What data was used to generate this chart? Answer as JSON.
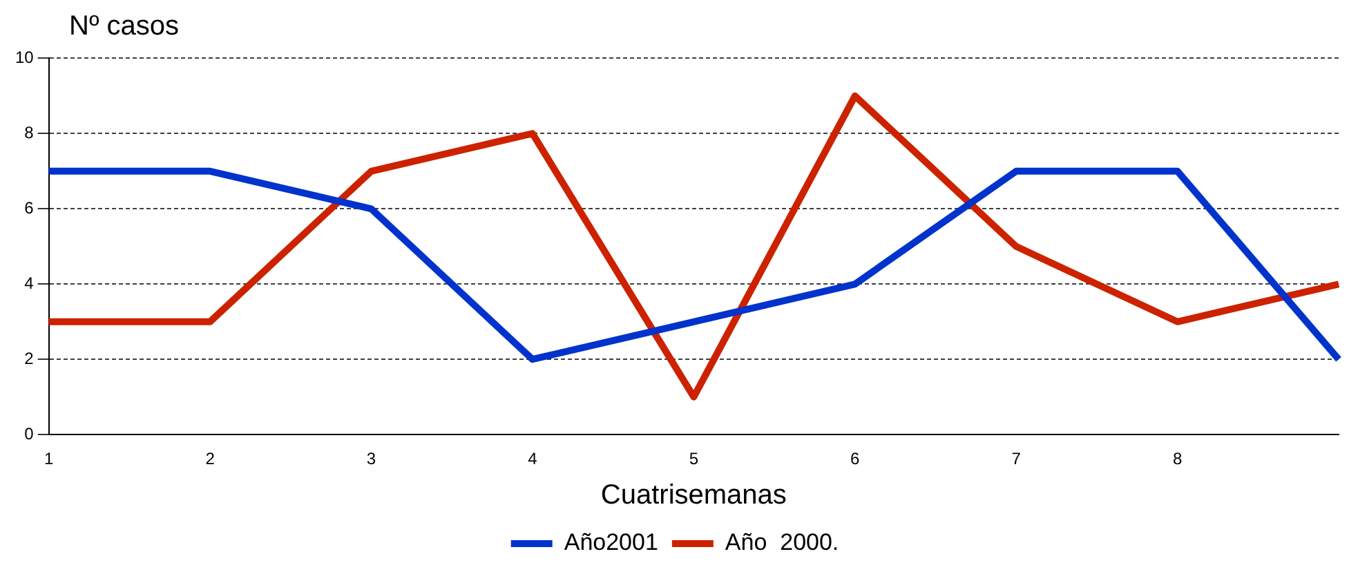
{
  "chart_data": {
    "type": "line",
    "ylabel": "Nº casos",
    "xlabel": "Cuatrisemanas",
    "categories": [
      "1",
      "2",
      "3",
      "4",
      "5",
      "6",
      "7",
      "8",
      null
    ],
    "series": [
      {
        "name": "Año2001",
        "color": "#0033cc",
        "values": [
          7,
          7,
          6,
          2,
          3,
          4,
          7,
          7,
          2
        ]
      },
      {
        "name": "Año  2000.",
        "color": "#cc2200",
        "values": [
          3,
          3,
          7,
          8,
          1,
          9,
          5,
          3,
          4
        ]
      }
    ],
    "ylim": [
      0,
      10
    ],
    "yticks": [
      0,
      2,
      4,
      6,
      8,
      10
    ],
    "grid": "y",
    "legend": "bottom",
    "marker": "none",
    "line_style": "solid"
  }
}
